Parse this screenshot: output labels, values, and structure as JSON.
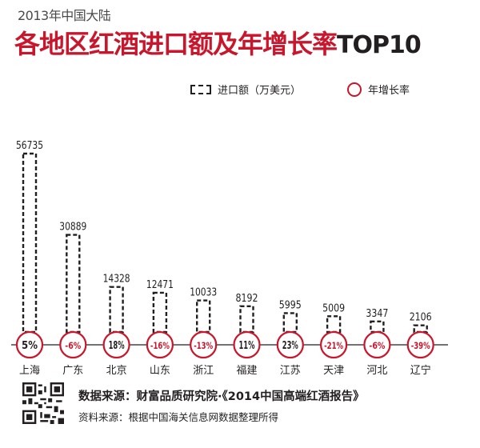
{
  "header": {
    "subtitle": "2013年中国大陆",
    "title": "各地区红酒进口额及年增长率",
    "title_suffix": "TOP10"
  },
  "legend": {
    "bar_label": "进口额（万美元）",
    "circle_label": "年增长率"
  },
  "colors": {
    "accent": "#c8162c",
    "ink": "#231f20"
  },
  "chart_data": {
    "type": "bar",
    "categories": [
      "上海",
      "广东",
      "北京",
      "山东",
      "浙江",
      "福建",
      "江苏",
      "天津",
      "河北",
      "辽宁"
    ],
    "values": [
      56735,
      30889,
      14328,
      12471,
      10033,
      8192,
      5995,
      5009,
      3347,
      2106
    ],
    "growth": [
      "5%",
      "-6%",
      "18%",
      "-16%",
      "-13%",
      "11%",
      "23%",
      "-21%",
      "-6%",
      "-39%"
    ],
    "value_labels": [
      "56735",
      "30889",
      "14328",
      "12471",
      "10033",
      "8192",
      "5995",
      "5009",
      "3347",
      "2106"
    ],
    "series": [
      {
        "name": "进口额（万美元）",
        "values": [
          56735,
          30889,
          14328,
          12471,
          10033,
          8192,
          5995,
          5009,
          3347,
          2106
        ]
      },
      {
        "name": "年增长率",
        "values": [
          5,
          -6,
          18,
          -16,
          -13,
          11,
          23,
          -21,
          -6,
          -39
        ]
      }
    ]
  },
  "footer": {
    "source_line": "数据来源：财富品质研究院·《2014中国高端红酒报告》",
    "material_line": "资料来源：根据中国海关信息网数据整理所得"
  }
}
